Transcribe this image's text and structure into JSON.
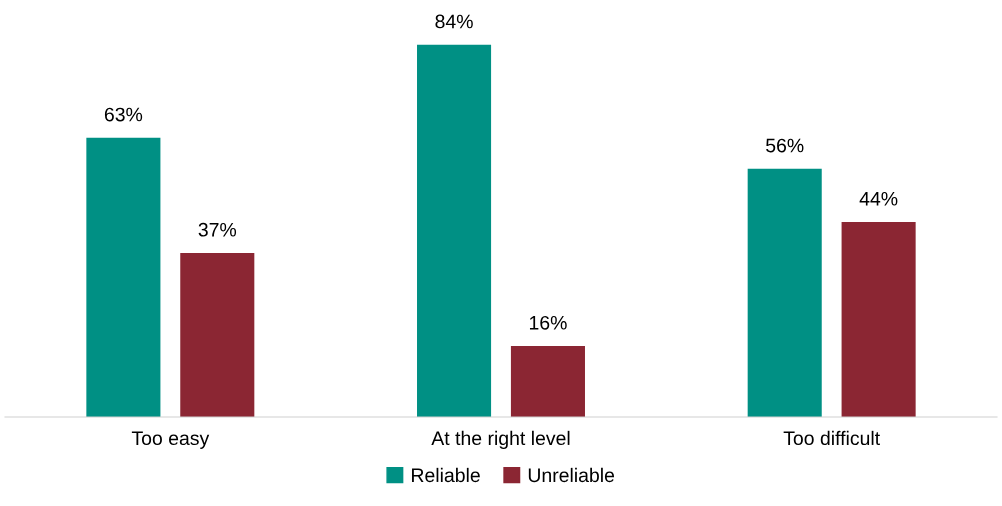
{
  "chart_data": {
    "type": "bar",
    "categories": [
      "Too easy",
      "At the right level",
      "Too difficult"
    ],
    "series": [
      {
        "name": "Reliable",
        "color": "#009084",
        "values": [
          63,
          84,
          56
        ],
        "value_labels": [
          "63%",
          "84%",
          "56%"
        ]
      },
      {
        "name": "Unreliable",
        "color": "#8b2633",
        "values": [
          37,
          16,
          44
        ],
        "value_labels": [
          "37%",
          "16%",
          "44%"
        ]
      }
    ],
    "tick_labels": "x",
    "grid": false,
    "legend": "bottom"
  }
}
